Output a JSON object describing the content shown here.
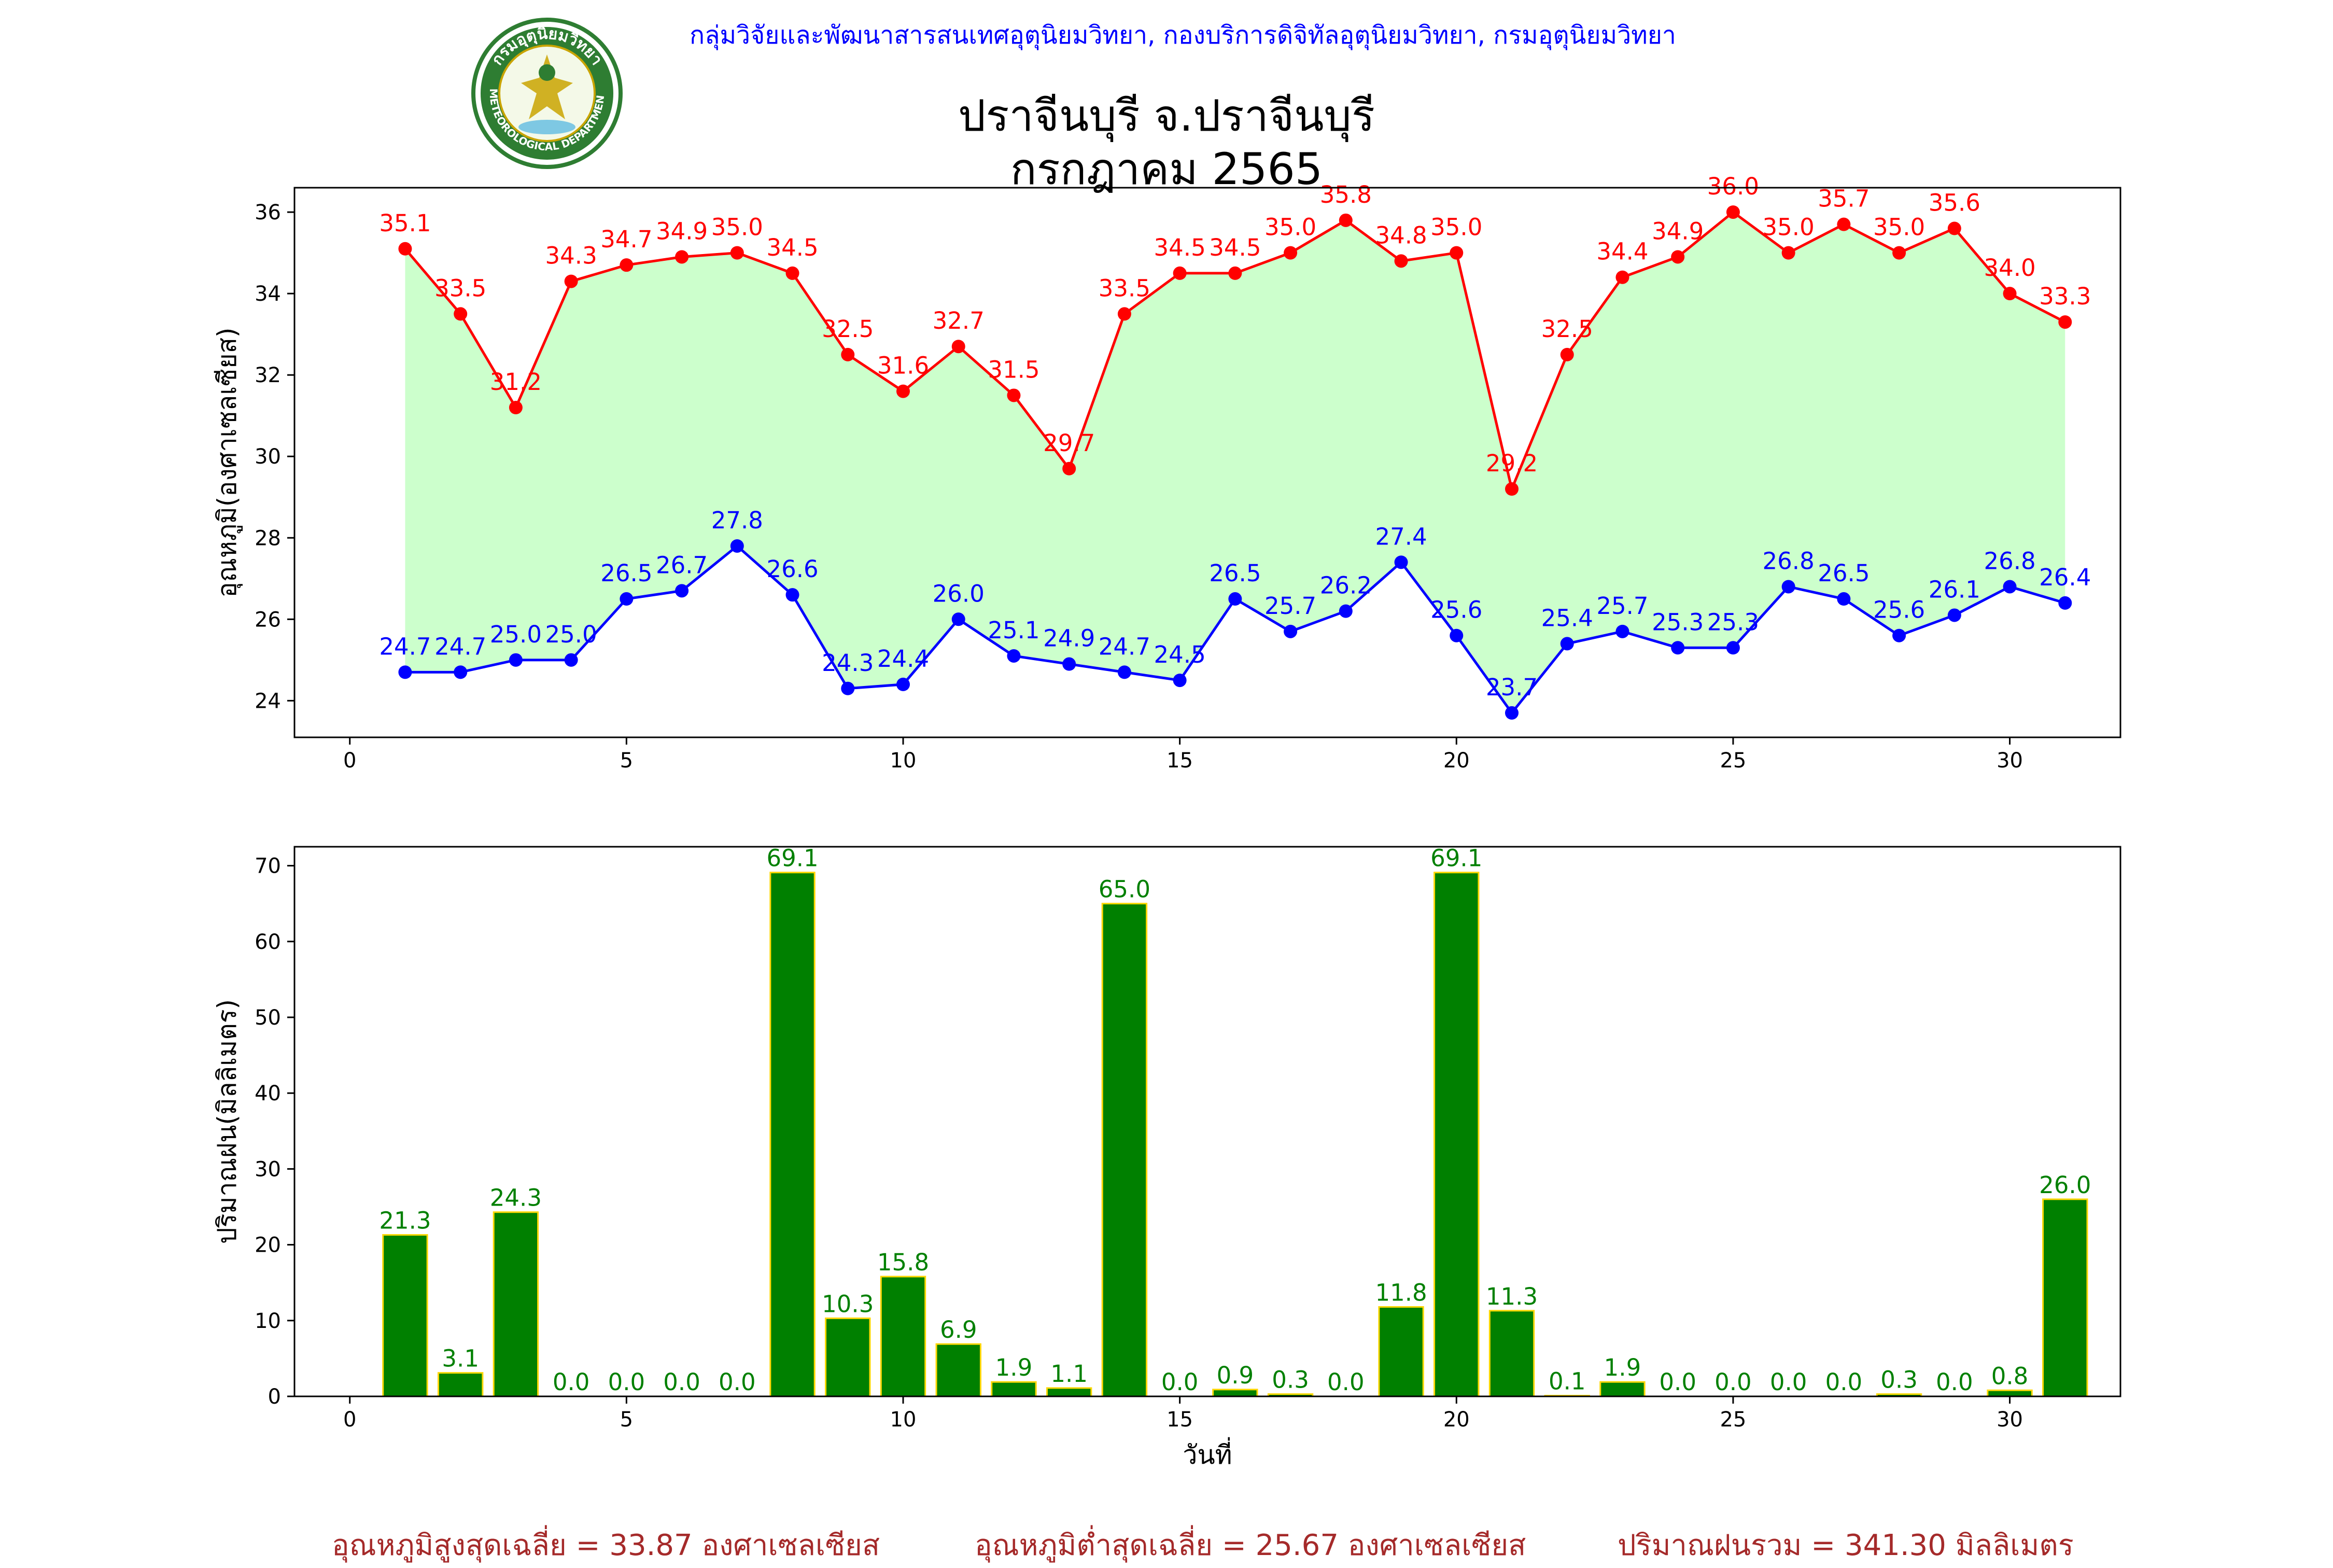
{
  "header": {
    "agency_line": "กลุ่มวิจัยและพัฒนาสารสนเทศอุตุนิยมวิทยา, กองบริการดิจิทัลอุตุนิยมวิทยา, กรมอุตุนิยมวิทยา",
    "title_line1": "ปราจีนบุรี จ.ปราจีนบุรี",
    "title_line2": "กรกฎาคม 2565",
    "logo_text_top": "กรมอุตุนิยมวิทยา",
    "logo_text_bottom": "METEOROLOGICAL DEPARTMENT"
  },
  "colors": {
    "max_line": "#ff0000",
    "min_line": "#0000ff",
    "fill_between": "#ccffcc",
    "bar_fill": "#008000",
    "bar_edge": "#ffd700",
    "bar_label": "#008000",
    "footer_text": "#a52a2a",
    "header_text": "#0000ff"
  },
  "chart_data": [
    {
      "type": "line",
      "ylabel": "อุณหภูมิ(องศาเซลเซียส)",
      "xlabel": "",
      "xlim": [
        -1,
        32
      ],
      "ylim": [
        23.1,
        36.6
      ],
      "xticks": [
        0,
        5,
        10,
        15,
        20,
        25,
        30
      ],
      "yticks": [
        24,
        26,
        28,
        30,
        32,
        34,
        36
      ],
      "x": [
        1,
        2,
        3,
        4,
        5,
        6,
        7,
        8,
        9,
        10,
        11,
        12,
        13,
        14,
        15,
        16,
        17,
        18,
        19,
        20,
        21,
        22,
        23,
        24,
        25,
        26,
        27,
        28,
        29,
        30,
        31
      ],
      "series": [
        {
          "key": "max",
          "values": [
            35.1,
            33.5,
            31.2,
            34.3,
            34.7,
            34.9,
            35.0,
            34.5,
            32.5,
            31.6,
            32.7,
            31.5,
            29.7,
            33.5,
            34.5,
            34.5,
            35.0,
            35.8,
            34.8,
            35.0,
            29.2,
            32.5,
            34.4,
            34.9,
            36.0,
            35.0,
            35.7,
            35.0,
            35.6,
            34.0,
            33.3
          ]
        },
        {
          "key": "min",
          "values": [
            24.7,
            24.7,
            25.0,
            25.0,
            26.5,
            26.7,
            27.8,
            26.6,
            24.3,
            24.4,
            26.0,
            25.1,
            24.9,
            24.7,
            24.5,
            26.5,
            25.7,
            26.2,
            27.4,
            25.6,
            23.7,
            25.4,
            25.7,
            25.3,
            25.3,
            26.8,
            26.5,
            25.6,
            26.1,
            26.8,
            26.4
          ]
        }
      ],
      "grid": false
    },
    {
      "type": "bar",
      "ylabel": "ปริมาณฝน(มิลลิเมตร)",
      "xlabel": "วันที่",
      "xlim": [
        -1,
        32
      ],
      "ylim": [
        0,
        72.5
      ],
      "xticks": [
        0,
        5,
        10,
        15,
        20,
        25,
        30
      ],
      "yticks": [
        0,
        10,
        20,
        30,
        40,
        50,
        60,
        70
      ],
      "x": [
        1,
        2,
        3,
        4,
        5,
        6,
        7,
        8,
        9,
        10,
        11,
        12,
        13,
        14,
        15,
        16,
        17,
        18,
        19,
        20,
        21,
        22,
        23,
        24,
        25,
        26,
        27,
        28,
        29,
        30,
        31
      ],
      "values": [
        21.3,
        3.1,
        24.3,
        0.0,
        0.0,
        0.0,
        0.0,
        69.1,
        10.3,
        15.8,
        6.9,
        1.9,
        1.1,
        65.0,
        0.0,
        0.9,
        0.3,
        0.0,
        11.8,
        69.1,
        11.3,
        0.1,
        1.9,
        0.0,
        0.0,
        0.0,
        0.0,
        0.3,
        0.0,
        0.8,
        26.0
      ],
      "grid": false
    }
  ],
  "footer": {
    "avg_max": "อุณหภูมิสูงสุดเฉลี่ย = 33.87 องศาเซลเซียส",
    "avg_min": "อุณหภูมิต่ำสุดเฉลี่ย = 25.67 องศาเซลเซียส",
    "total_rain": "ปริมาณฝนรวม = 341.30 มิลลิเมตร"
  }
}
